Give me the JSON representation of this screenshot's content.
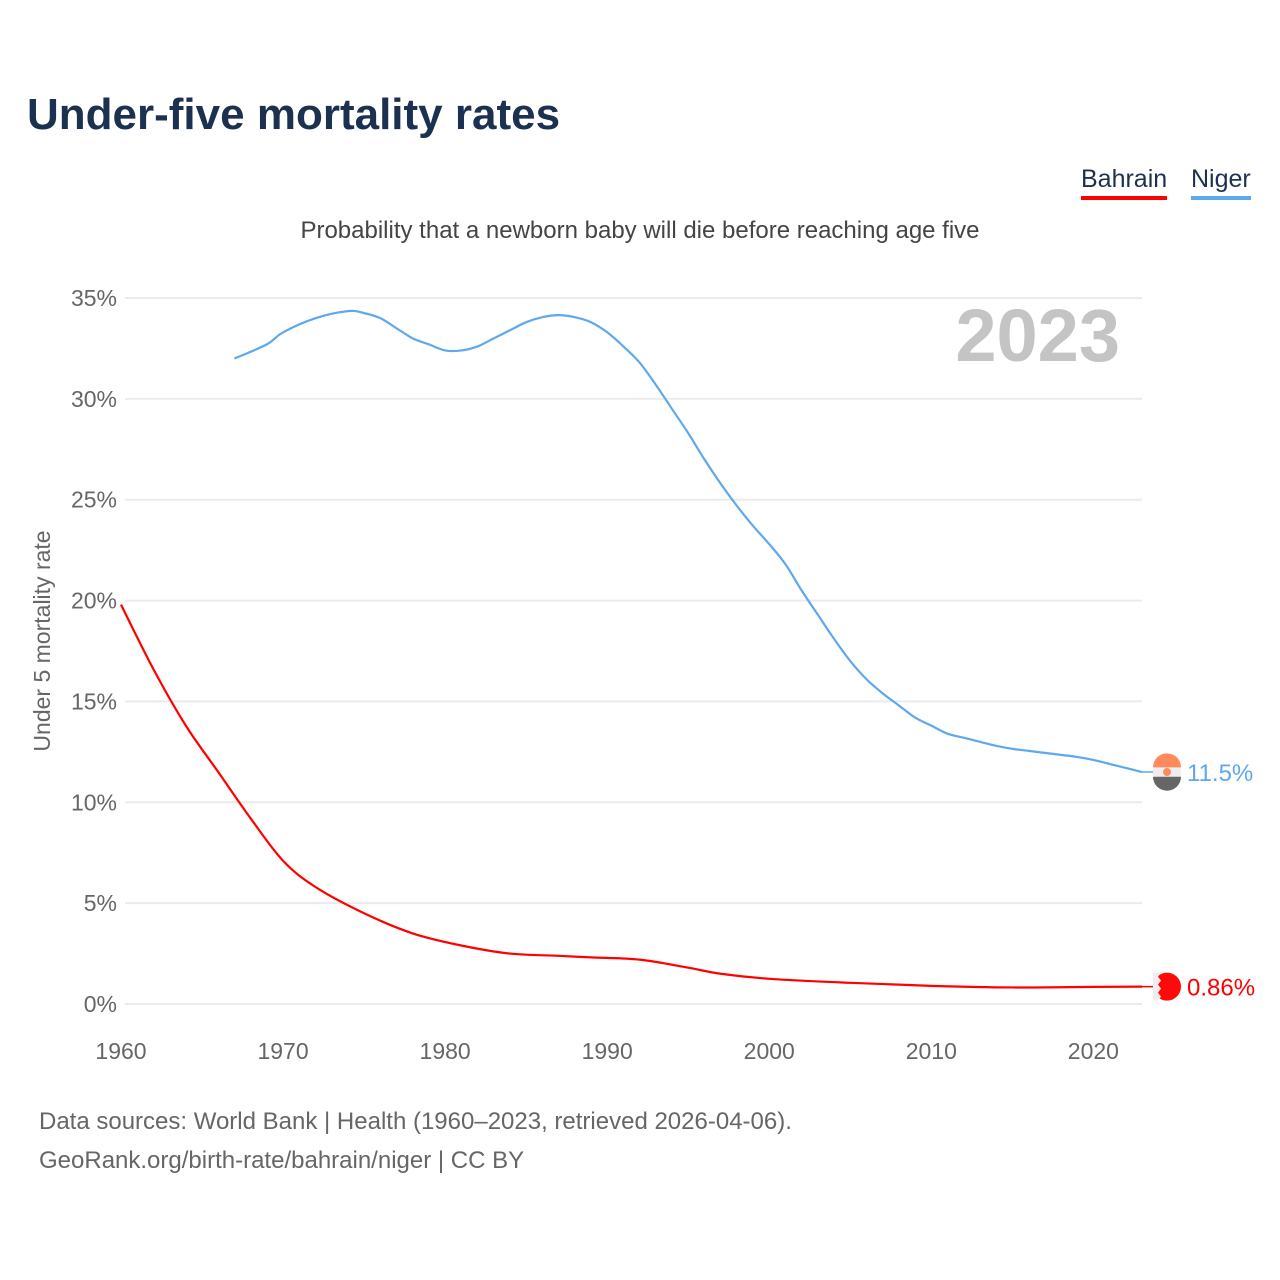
{
  "title": "Under-five mortality rates",
  "subtitle": "Probability that a newborn baby will die before reaching age five",
  "legend": [
    {
      "name": "Bahrain",
      "color": "#ff0000"
    },
    {
      "name": "Niger",
      "color": "#5fa8ee"
    }
  ],
  "footer": {
    "line1": "Data sources: World Bank | Health (1960–2023, retrieved 2026-04-06).",
    "line2": "GeoRank.org/birth-rate/bahrain/niger | CC BY"
  },
  "chart_data": {
    "type": "line",
    "title": "Under-five mortality rates",
    "ylabel": "Under 5 mortality rate",
    "xlabel": "",
    "year_label": "2023",
    "xlim": [
      1960,
      2023
    ],
    "ylim": [
      0,
      35
    ],
    "xticks": [
      "1960",
      "1970",
      "1980",
      "1990",
      "2000",
      "2010",
      "2020"
    ],
    "yticks": [
      "0%",
      "5%",
      "10%",
      "15%",
      "20%",
      "25%",
      "30%",
      "35%"
    ],
    "grid": true,
    "series": [
      {
        "name": "Bahrain",
        "color": "#ff0000",
        "end_label": "0.86%",
        "x": [
          1960,
          1962,
          1964,
          1966,
          1968,
          1970,
          1972,
          1975,
          1978,
          1981,
          1984,
          1987,
          1989,
          1992,
          1995,
          1997,
          2000,
          2005,
          2010,
          2015,
          2020,
          2023
        ],
        "y": [
          19.8,
          16.6,
          13.8,
          11.5,
          9.2,
          7.1,
          5.8,
          4.5,
          3.5,
          2.9,
          2.5,
          2.39,
          2.31,
          2.2,
          1.8,
          1.5,
          1.25,
          1.05,
          0.9,
          0.82,
          0.85,
          0.86
        ]
      },
      {
        "name": "Niger",
        "color": "#5fa8ee",
        "end_label": "11.5%",
        "x": [
          1967,
          1969,
          1970,
          1972,
          1974,
          1975,
          1976,
          1977,
          1978,
          1979,
          1980,
          1981,
          1982,
          1983,
          1984,
          1985,
          1986,
          1987,
          1988,
          1989,
          1990,
          1991,
          1992,
          1993,
          1994,
          1995,
          1996,
          1997,
          1998,
          1999,
          2000,
          2001,
          2002,
          2003,
          2004,
          2005,
          2006,
          2007,
          2008,
          2009,
          2010,
          2011,
          2012,
          2013,
          2014,
          2015,
          2016,
          2017,
          2018,
          2019,
          2020,
          2021,
          2022,
          2023
        ],
        "y": [
          32.0,
          32.7,
          33.3,
          34.0,
          34.35,
          34.25,
          34.0,
          33.5,
          33.0,
          32.7,
          32.4,
          32.4,
          32.6,
          33.0,
          33.4,
          33.8,
          34.05,
          34.15,
          34.05,
          33.8,
          33.3,
          32.6,
          31.8,
          30.7,
          29.5,
          28.3,
          27.0,
          25.8,
          24.7,
          23.7,
          22.8,
          21.8,
          20.5,
          19.3,
          18.1,
          17.0,
          16.1,
          15.4,
          14.8,
          14.2,
          13.8,
          13.4,
          13.2,
          13.0,
          12.8,
          12.65,
          12.55,
          12.45,
          12.35,
          12.25,
          12.1,
          11.9,
          11.7,
          11.5
        ]
      }
    ]
  }
}
